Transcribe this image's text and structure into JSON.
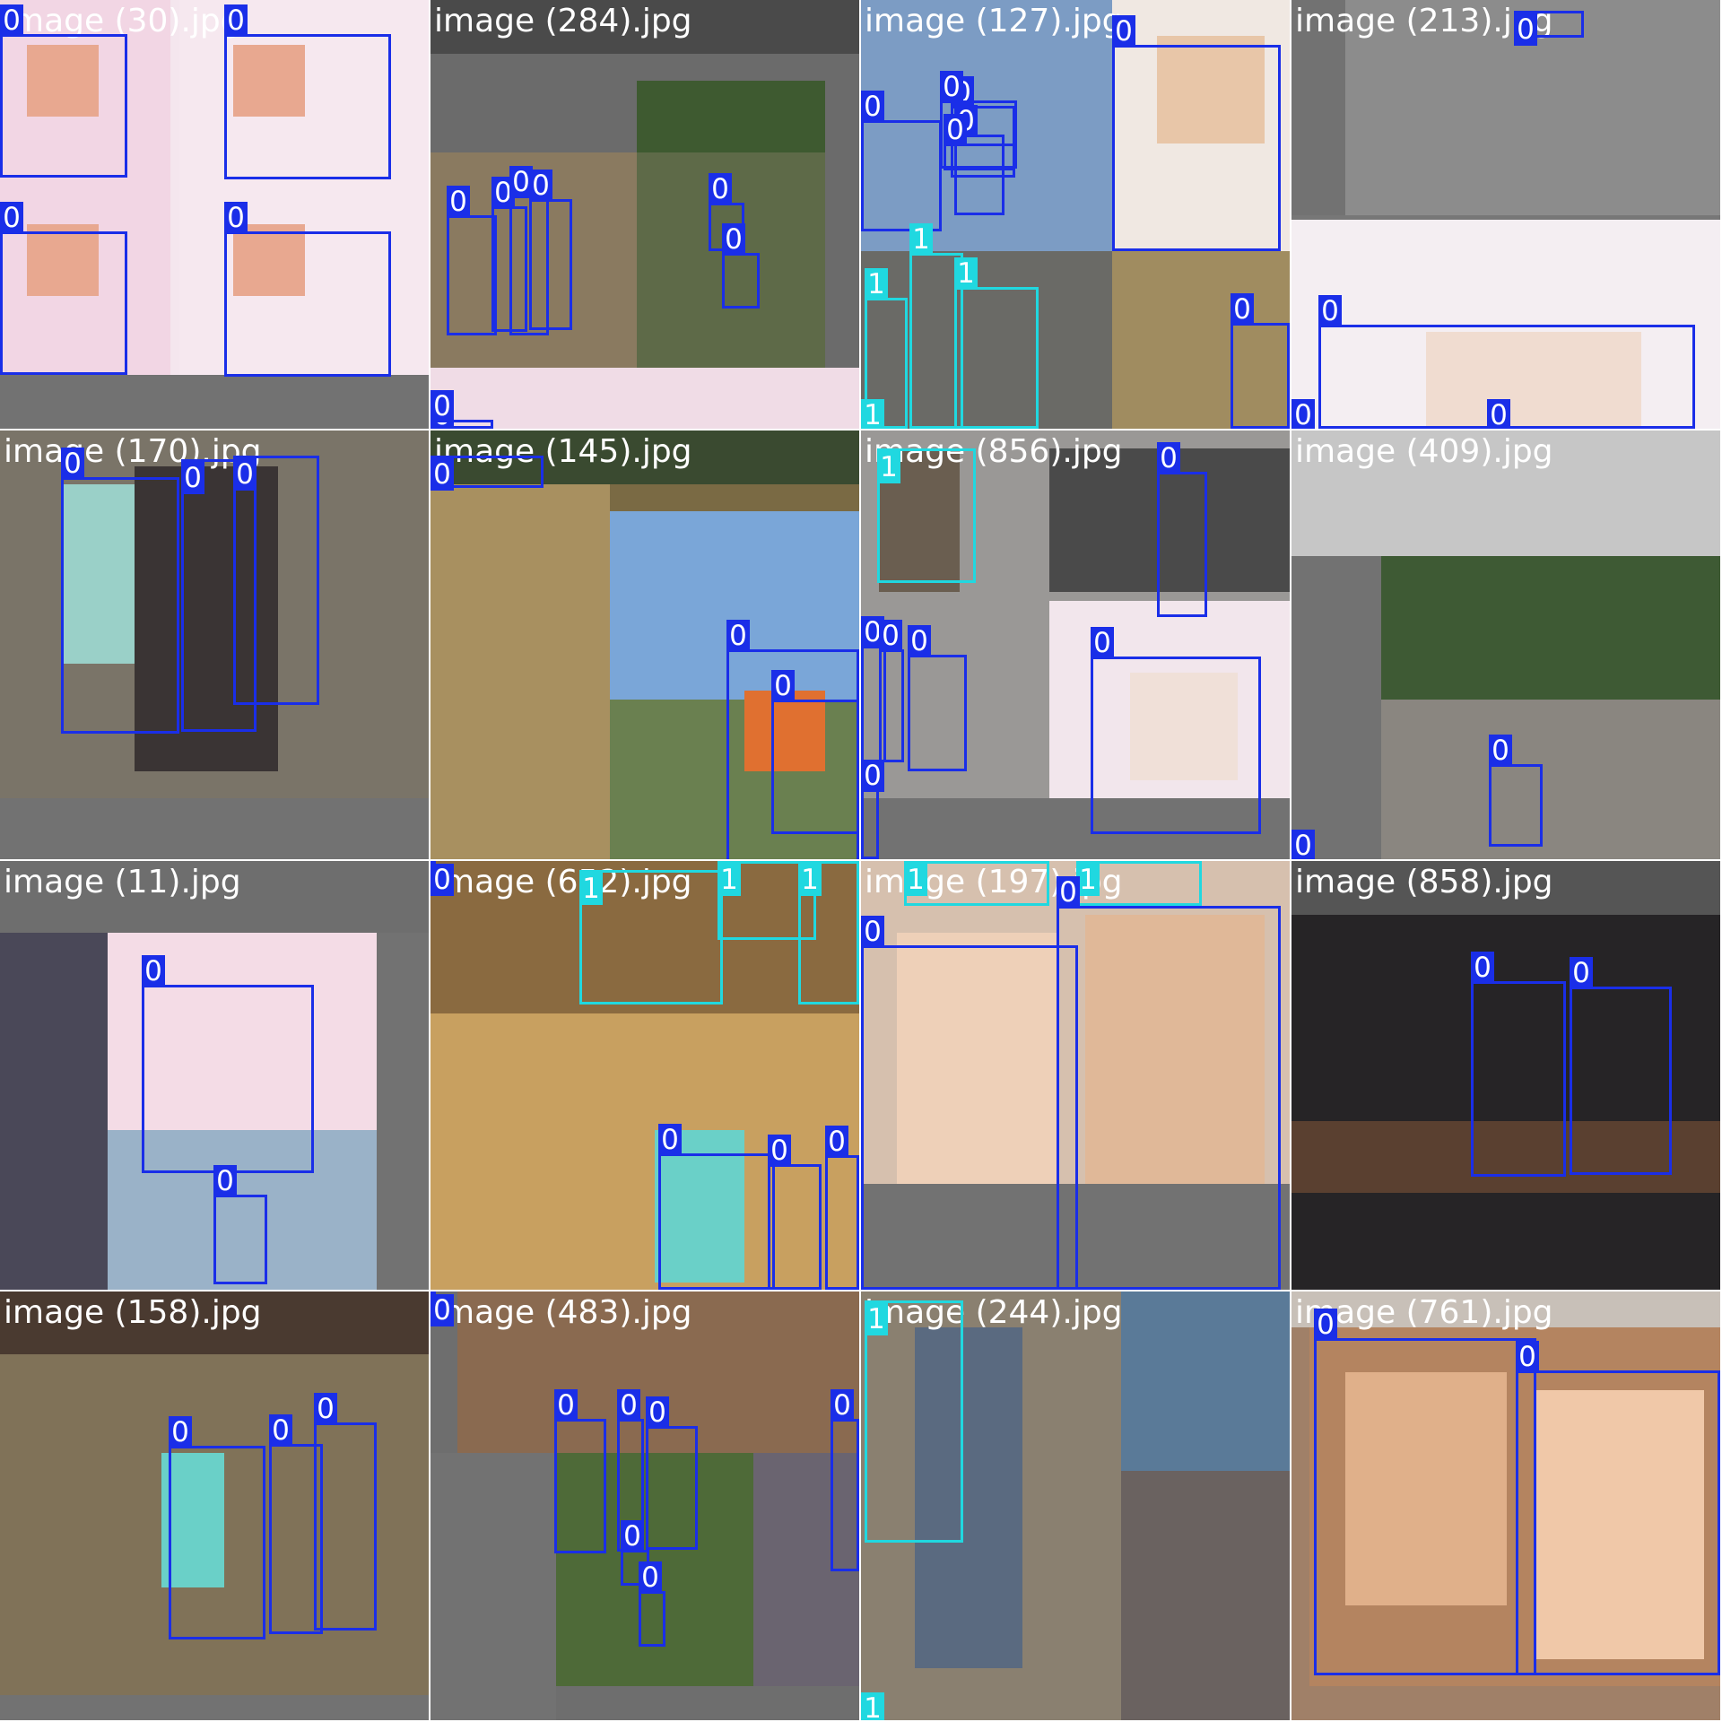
{
  "colors": {
    "class_0": "#1a2ee8",
    "class_1": "#20d8e0",
    "gap": "#ffffff",
    "padding": "#727272"
  },
  "tiles": [
    {
      "name": "image-30",
      "label": "image (30).jpg",
      "box_count": 4
    },
    {
      "name": "image-284",
      "label": "image (284).jpg",
      "box_count": 8
    },
    {
      "name": "image-127",
      "label": "image (127).jpg",
      "box_count": 11
    },
    {
      "name": "image-213",
      "label": "image (213).jpg",
      "box_count": 4
    },
    {
      "name": "image-170",
      "label": "image (170).jpg",
      "box_count": 3
    },
    {
      "name": "image-145",
      "label": "image (145).jpg",
      "box_count": 3
    },
    {
      "name": "image-856",
      "label": "image (856).jpg",
      "box_count": 7
    },
    {
      "name": "image-409",
      "label": "image (409).jpg",
      "box_count": 2
    },
    {
      "name": "image-11",
      "label": "image (11).jpg",
      "box_count": 2
    },
    {
      "name": "image-652",
      "label": "image (652).jpg",
      "box_count": 7
    },
    {
      "name": "image-197",
      "label": "image (197).jpg",
      "box_count": 4
    },
    {
      "name": "image-858",
      "label": "image (858).jpg",
      "box_count": 2
    },
    {
      "name": "image-158",
      "label": "image (158).jpg",
      "box_count": 3
    },
    {
      "name": "image-483",
      "label": "image (483).jpg",
      "box_count": 7
    },
    {
      "name": "image-244",
      "label": "image (244).jpg",
      "box_count": 2
    },
    {
      "name": "image-761",
      "label": "image (761).jpg",
      "box_count": 2
    }
  ],
  "detections": [
    {
      "tile": 0,
      "class": "0"
    },
    {
      "tile": 0,
      "class": "0"
    },
    {
      "tile": 0,
      "class": "0"
    },
    {
      "tile": 0,
      "class": "0"
    },
    {
      "tile": 1,
      "class": "0"
    },
    {
      "tile": 1,
      "class": "0"
    },
    {
      "tile": 1,
      "class": "0"
    },
    {
      "tile": 1,
      "class": "0"
    },
    {
      "tile": 1,
      "class": "0"
    },
    {
      "tile": 1,
      "class": "0"
    },
    {
      "tile": 1,
      "class": "0"
    },
    {
      "tile": 1,
      "class": "0"
    },
    {
      "tile": 2,
      "class": "0"
    },
    {
      "tile": 2,
      "class": "0"
    },
    {
      "tile": 2,
      "class": "0"
    },
    {
      "tile": 2,
      "class": "0"
    },
    {
      "tile": 2,
      "class": "0"
    },
    {
      "tile": 2,
      "class": "0"
    },
    {
      "tile": 2,
      "class": "1"
    },
    {
      "tile": 2,
      "class": "1"
    },
    {
      "tile": 2,
      "class": "1"
    },
    {
      "tile": 2,
      "class": "1"
    },
    {
      "tile": 2,
      "class": "0"
    },
    {
      "tile": 3,
      "class": "0"
    },
    {
      "tile": 3,
      "class": "0"
    },
    {
      "tile": 3,
      "class": "0"
    },
    {
      "tile": 3,
      "class": "0"
    },
    {
      "tile": 4,
      "class": "0"
    },
    {
      "tile": 4,
      "class": "0"
    },
    {
      "tile": 4,
      "class": "0"
    },
    {
      "tile": 5,
      "class": "0"
    },
    {
      "tile": 5,
      "class": "0"
    },
    {
      "tile": 5,
      "class": "0"
    },
    {
      "tile": 6,
      "class": "1"
    },
    {
      "tile": 6,
      "class": "0"
    },
    {
      "tile": 6,
      "class": "0"
    },
    {
      "tile": 6,
      "class": "0"
    },
    {
      "tile": 6,
      "class": "0"
    },
    {
      "tile": 6,
      "class": "0"
    },
    {
      "tile": 6,
      "class": "0"
    },
    {
      "tile": 7,
      "class": "0"
    },
    {
      "tile": 7,
      "class": "0"
    },
    {
      "tile": 8,
      "class": "0"
    },
    {
      "tile": 8,
      "class": "0"
    },
    {
      "tile": 9,
      "class": "1"
    },
    {
      "tile": 9,
      "class": "1"
    },
    {
      "tile": 9,
      "class": "1"
    },
    {
      "tile": 9,
      "class": "0"
    },
    {
      "tile": 9,
      "class": "0"
    },
    {
      "tile": 9,
      "class": "0"
    },
    {
      "tile": 9,
      "class": "0"
    },
    {
      "tile": 10,
      "class": "1"
    },
    {
      "tile": 10,
      "class": "1"
    },
    {
      "tile": 10,
      "class": "0"
    },
    {
      "tile": 10,
      "class": "0"
    },
    {
      "tile": 11,
      "class": "0"
    },
    {
      "tile": 11,
      "class": "0"
    },
    {
      "tile": 12,
      "class": "0"
    },
    {
      "tile": 12,
      "class": "0"
    },
    {
      "tile": 12,
      "class": "0"
    },
    {
      "tile": 13,
      "class": "0"
    },
    {
      "tile": 13,
      "class": "0"
    },
    {
      "tile": 13,
      "class": "0"
    },
    {
      "tile": 13,
      "class": "0"
    },
    {
      "tile": 13,
      "class": "0"
    },
    {
      "tile": 13,
      "class": "0"
    },
    {
      "tile": 13,
      "class": "0"
    },
    {
      "tile": 14,
      "class": "1"
    },
    {
      "tile": 14,
      "class": "1"
    },
    {
      "tile": 15,
      "class": "0"
    },
    {
      "tile": 15,
      "class": "0"
    }
  ]
}
